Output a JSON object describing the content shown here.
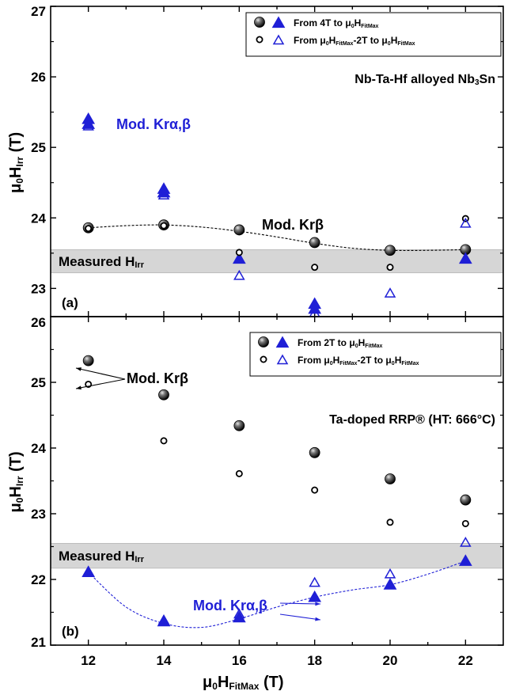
{
  "chart_data": [
    {
      "type": "scatter",
      "panel_label": "(a)",
      "title": "",
      "subtitle": "",
      "annotation": "Nb-Ta-Hf alloyed Nb₃Sn",
      "xlabel": "",
      "ylabel": "μ₀Hᴵʳʳ (T)",
      "ylim": [
        22.6,
        27
      ],
      "ytick_labels": [
        "23",
        "24",
        "25",
        "26",
        "27"
      ],
      "ytick_values": [
        23,
        24,
        25,
        26,
        27
      ],
      "measured_band": {
        "label": "Measured Hᴵʳʳ",
        "y_range": [
          23.22,
          23.55
        ]
      },
      "series": [
        {
          "name": "From 4T to μ₀H_FitMax",
          "marker": "filled-sphere",
          "color": "#000000",
          "x": [
            12,
            14,
            16,
            18,
            20,
            22
          ],
          "y": [
            23.86,
            23.9,
            23.83,
            23.65,
            23.54,
            23.55
          ]
        },
        {
          "name": "From 4T to μ₀H_FitMax",
          "marker": "filled-triangle",
          "color": "#1f1fd6",
          "x": [
            12,
            12,
            14,
            14,
            16,
            18,
            18,
            22
          ],
          "y": [
            25.4,
            25.33,
            24.41,
            24.36,
            23.42,
            22.78,
            22.71,
            23.42
          ]
        },
        {
          "name": "From μ₀H_FitMax-2T to μ₀H_FitMax",
          "marker": "open-circle",
          "color": "#000000",
          "x": [
            12,
            14,
            16,
            18,
            20,
            22
          ],
          "y": [
            23.85,
            23.89,
            23.51,
            23.3,
            23.3,
            23.99
          ]
        },
        {
          "name": "From μ₀H_FitMax-2T to μ₀H_FitMax",
          "marker": "open-triangle",
          "color": "#1f1fd6",
          "x": [
            12,
            14,
            16,
            18,
            20,
            22
          ],
          "y": [
            25.3,
            24.32,
            23.18,
            22.65,
            22.93,
            23.92
          ]
        }
      ],
      "fit_curve": {
        "label": "Mod. Krβ",
        "color": "#000000",
        "x": [
          12,
          13,
          14,
          15,
          16,
          17,
          18,
          19,
          20,
          21,
          22
        ],
        "y": [
          23.86,
          23.89,
          23.9,
          23.87,
          23.81,
          23.73,
          23.64,
          23.57,
          23.54,
          23.54,
          23.55
        ]
      },
      "text_labels": [
        {
          "text": "Mod. Krα,β",
          "color": "#1f1fd6"
        },
        {
          "text": "Mod. Krβ",
          "color": "#000000"
        }
      ]
    },
    {
      "type": "scatter",
      "panel_label": "(b)",
      "title": "",
      "subtitle": "",
      "annotation": "Ta-doped RRP® (HT: 666°C)",
      "xlabel": "μ₀H_FitMax (T)",
      "ylabel": "μ₀Hᴵʳʳ (T)",
      "xlim": [
        11,
        23
      ],
      "xtick_labels": [
        "12",
        "14",
        "16",
        "18",
        "20",
        "22"
      ],
      "xtick_values": [
        12,
        14,
        16,
        18,
        20,
        22
      ],
      "ylim": [
        21,
        26
      ],
      "ytick_labels": [
        "21",
        "22",
        "23",
        "24",
        "25",
        "26"
      ],
      "ytick_values": [
        21,
        22,
        23,
        24,
        25,
        26
      ],
      "measured_band": {
        "label": "Measured Hᴵʳʳ",
        "y_range": [
          22.17,
          22.55
        ]
      },
      "series": [
        {
          "name": "From 2T to μ₀H_FitMax",
          "marker": "filled-sphere",
          "color": "#000000",
          "x": [
            12,
            14,
            16,
            18,
            20,
            22
          ],
          "y": [
            25.33,
            24.81,
            24.34,
            23.93,
            23.53,
            23.21
          ]
        },
        {
          "name": "From 2T to μ₀H_FitMax",
          "marker": "filled-triangle",
          "color": "#1f1fd6",
          "x": [
            12,
            14,
            16,
            18,
            20,
            22
          ],
          "y": [
            22.11,
            21.36,
            21.42,
            21.73,
            21.92,
            22.28
          ]
        },
        {
          "name": "From μ₀H_FitMax-2T to μ₀H_FitMax",
          "marker": "open-circle",
          "color": "#000000",
          "x": [
            12,
            14,
            16,
            18,
            20,
            22
          ],
          "y": [
            24.97,
            24.11,
            23.61,
            23.36,
            22.87,
            22.85
          ]
        },
        {
          "name": "From μ₀H_FitMax-2T to μ₀H_FitMax",
          "marker": "open-triangle",
          "color": "#1f1fd6",
          "x": [
            12,
            14,
            16,
            18,
            20,
            22
          ],
          "y": [
            22.12,
            21.38,
            21.47,
            21.95,
            22.08,
            22.56
          ]
        }
      ],
      "fit_curve": {
        "label": "Mod. Krα,β",
        "color": "#1f1fd6",
        "x": [
          12,
          13,
          14,
          15,
          16,
          17,
          18,
          19,
          20,
          21,
          22
        ],
        "y": [
          22.11,
          21.58,
          21.33,
          21.27,
          21.4,
          21.58,
          21.73,
          21.84,
          21.92,
          22.08,
          22.28
        ]
      },
      "text_labels": [
        {
          "text": "Mod. Krβ",
          "color": "#000000"
        },
        {
          "text": "Mod. Krα,β",
          "color": "#1f1fd6"
        }
      ]
    }
  ]
}
